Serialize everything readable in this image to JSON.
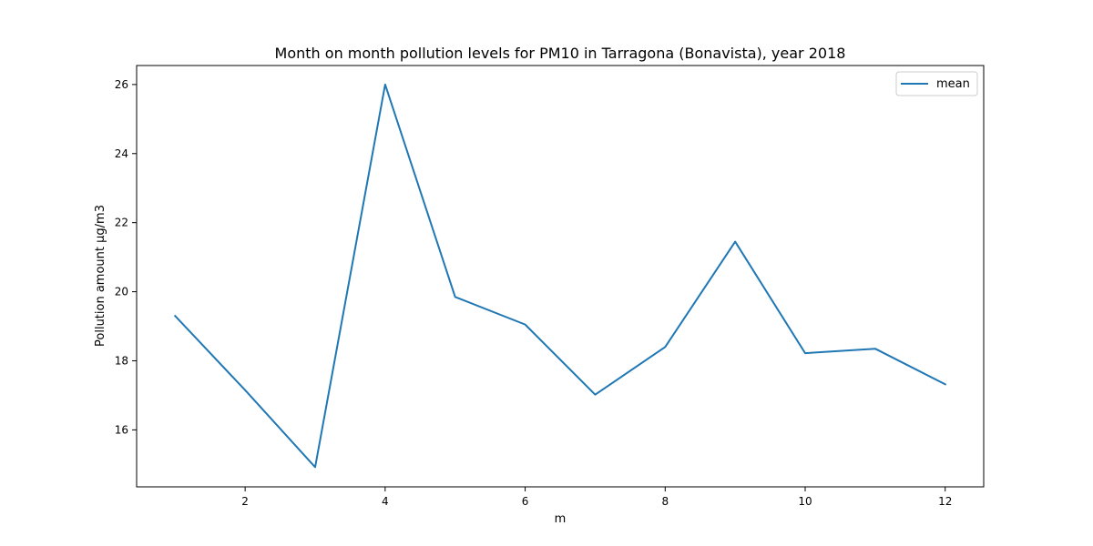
{
  "chart_data": {
    "type": "line",
    "title": "Month on month pollution levels for PM10 in Tarragona (Bonavista), year 2018",
    "xlabel": "m",
    "ylabel": "Pollution amount µg/m3",
    "xlim": [
      0.45,
      12.55
    ],
    "ylim": [
      14.35,
      26.55
    ],
    "xticks": [
      2,
      4,
      6,
      8,
      10,
      12
    ],
    "yticks": [
      16,
      18,
      20,
      22,
      24,
      26
    ],
    "grid": false,
    "legend": {
      "position": "top-right",
      "entries": [
        "mean"
      ]
    },
    "series": [
      {
        "name": "mean",
        "color": "#1f77b4",
        "x": [
          1,
          2,
          3,
          4,
          5,
          6,
          7,
          8,
          9,
          10,
          11,
          12
        ],
        "values": [
          19.3,
          17.15,
          14.92,
          26.0,
          19.85,
          19.05,
          17.02,
          18.4,
          21.45,
          18.22,
          18.35,
          17.32
        ]
      }
    ]
  }
}
